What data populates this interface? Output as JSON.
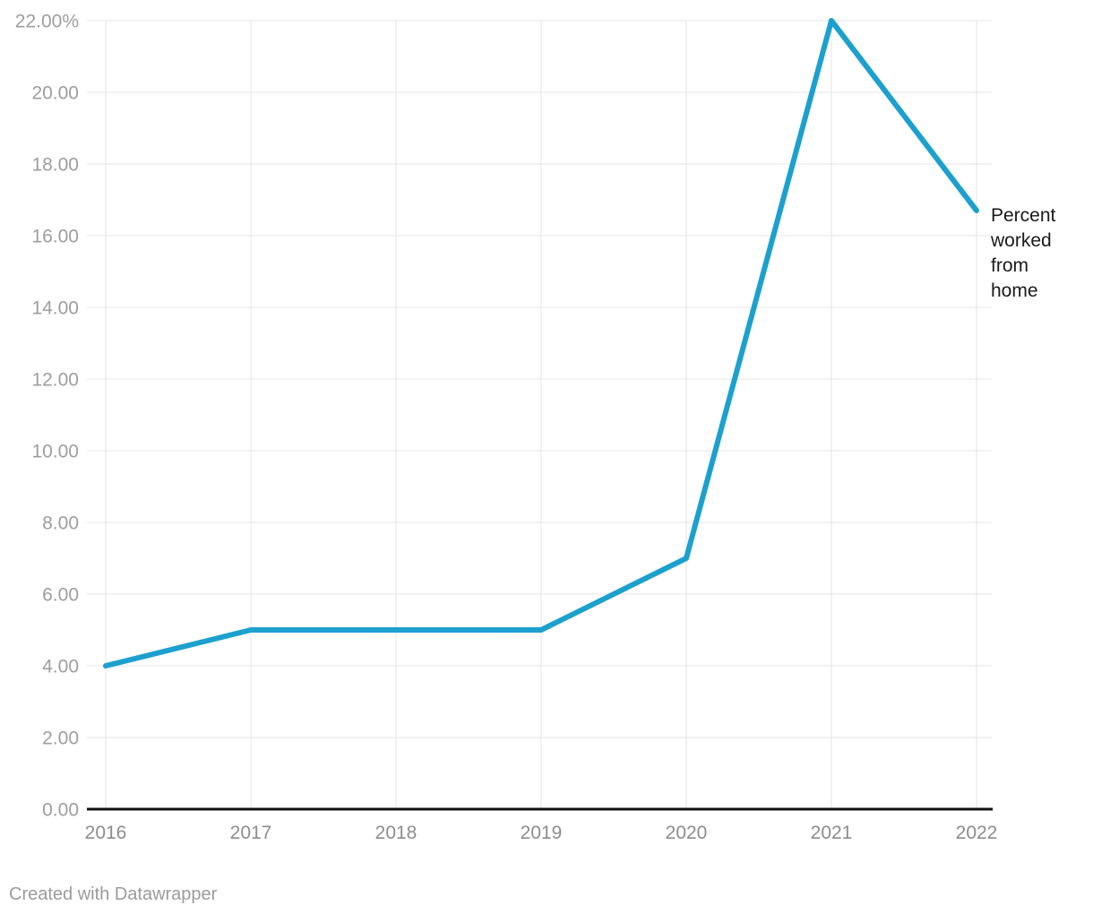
{
  "chart_data": {
    "type": "line",
    "title": "",
    "xlabel": "",
    "ylabel": "",
    "x": [
      2016,
      2017,
      2018,
      2019,
      2020,
      2021,
      2022
    ],
    "series": [
      {
        "name": "Percent worked from home",
        "values": [
          4.0,
          5.0,
          5.0,
          5.0,
          7.0,
          22.0,
          16.7
        ]
      }
    ],
    "series_label": "Percent worked from home",
    "x_tick_labels": [
      "2016",
      "2017",
      "2018",
      "2019",
      "2020",
      "2021",
      "2022"
    ],
    "y_ticks": [
      0,
      2,
      4,
      6,
      8,
      10,
      12,
      14,
      16,
      18,
      20,
      22
    ],
    "y_tick_labels": [
      "0.00",
      "2.00",
      "4.00",
      "6.00",
      "8.00",
      "10.00",
      "12.00",
      "14.00",
      "16.00",
      "18.00",
      "20.00",
      "22.00%"
    ],
    "ylim": [
      0,
      22
    ],
    "grid": true,
    "legend_position": "right-end-label",
    "line_color": "#1CA0CE"
  },
  "colors": {
    "grid": "#e4e4e4",
    "baseline": "#111111",
    "y_tick_label": "#9e9e9e",
    "x_tick_label": "#8d8d8d",
    "series_label_text": "#1a1a1a",
    "footer_text": "#9b9b9b"
  },
  "footer": {
    "credit": "Created with Datawrapper"
  }
}
